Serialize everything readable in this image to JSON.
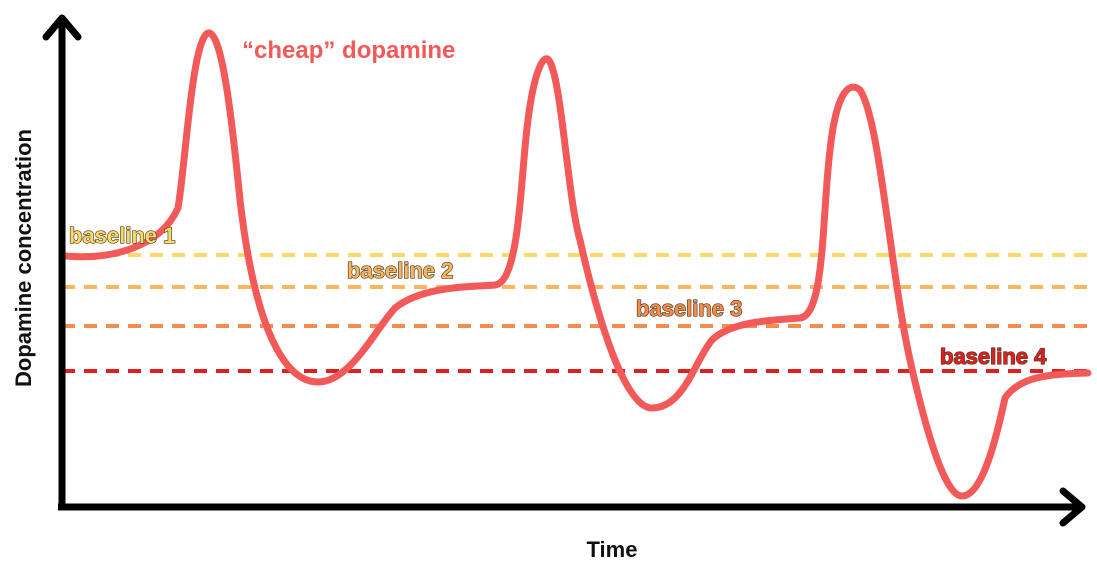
{
  "diagram": {
    "y_axis_label": "Dopamine concentration",
    "x_axis_label": "Time",
    "curve_label": "“cheap” dopamine",
    "curve_color": "#f25a5a",
    "baselines": [
      {
        "label": "baseline 1",
        "color": "#fbd967"
      },
      {
        "label": "baseline 2",
        "color": "#f6b660"
      },
      {
        "label": "baseline 3",
        "color": "#f48d4c"
      },
      {
        "label": "baseline 4",
        "color": "#e01f1f"
      }
    ]
  }
}
